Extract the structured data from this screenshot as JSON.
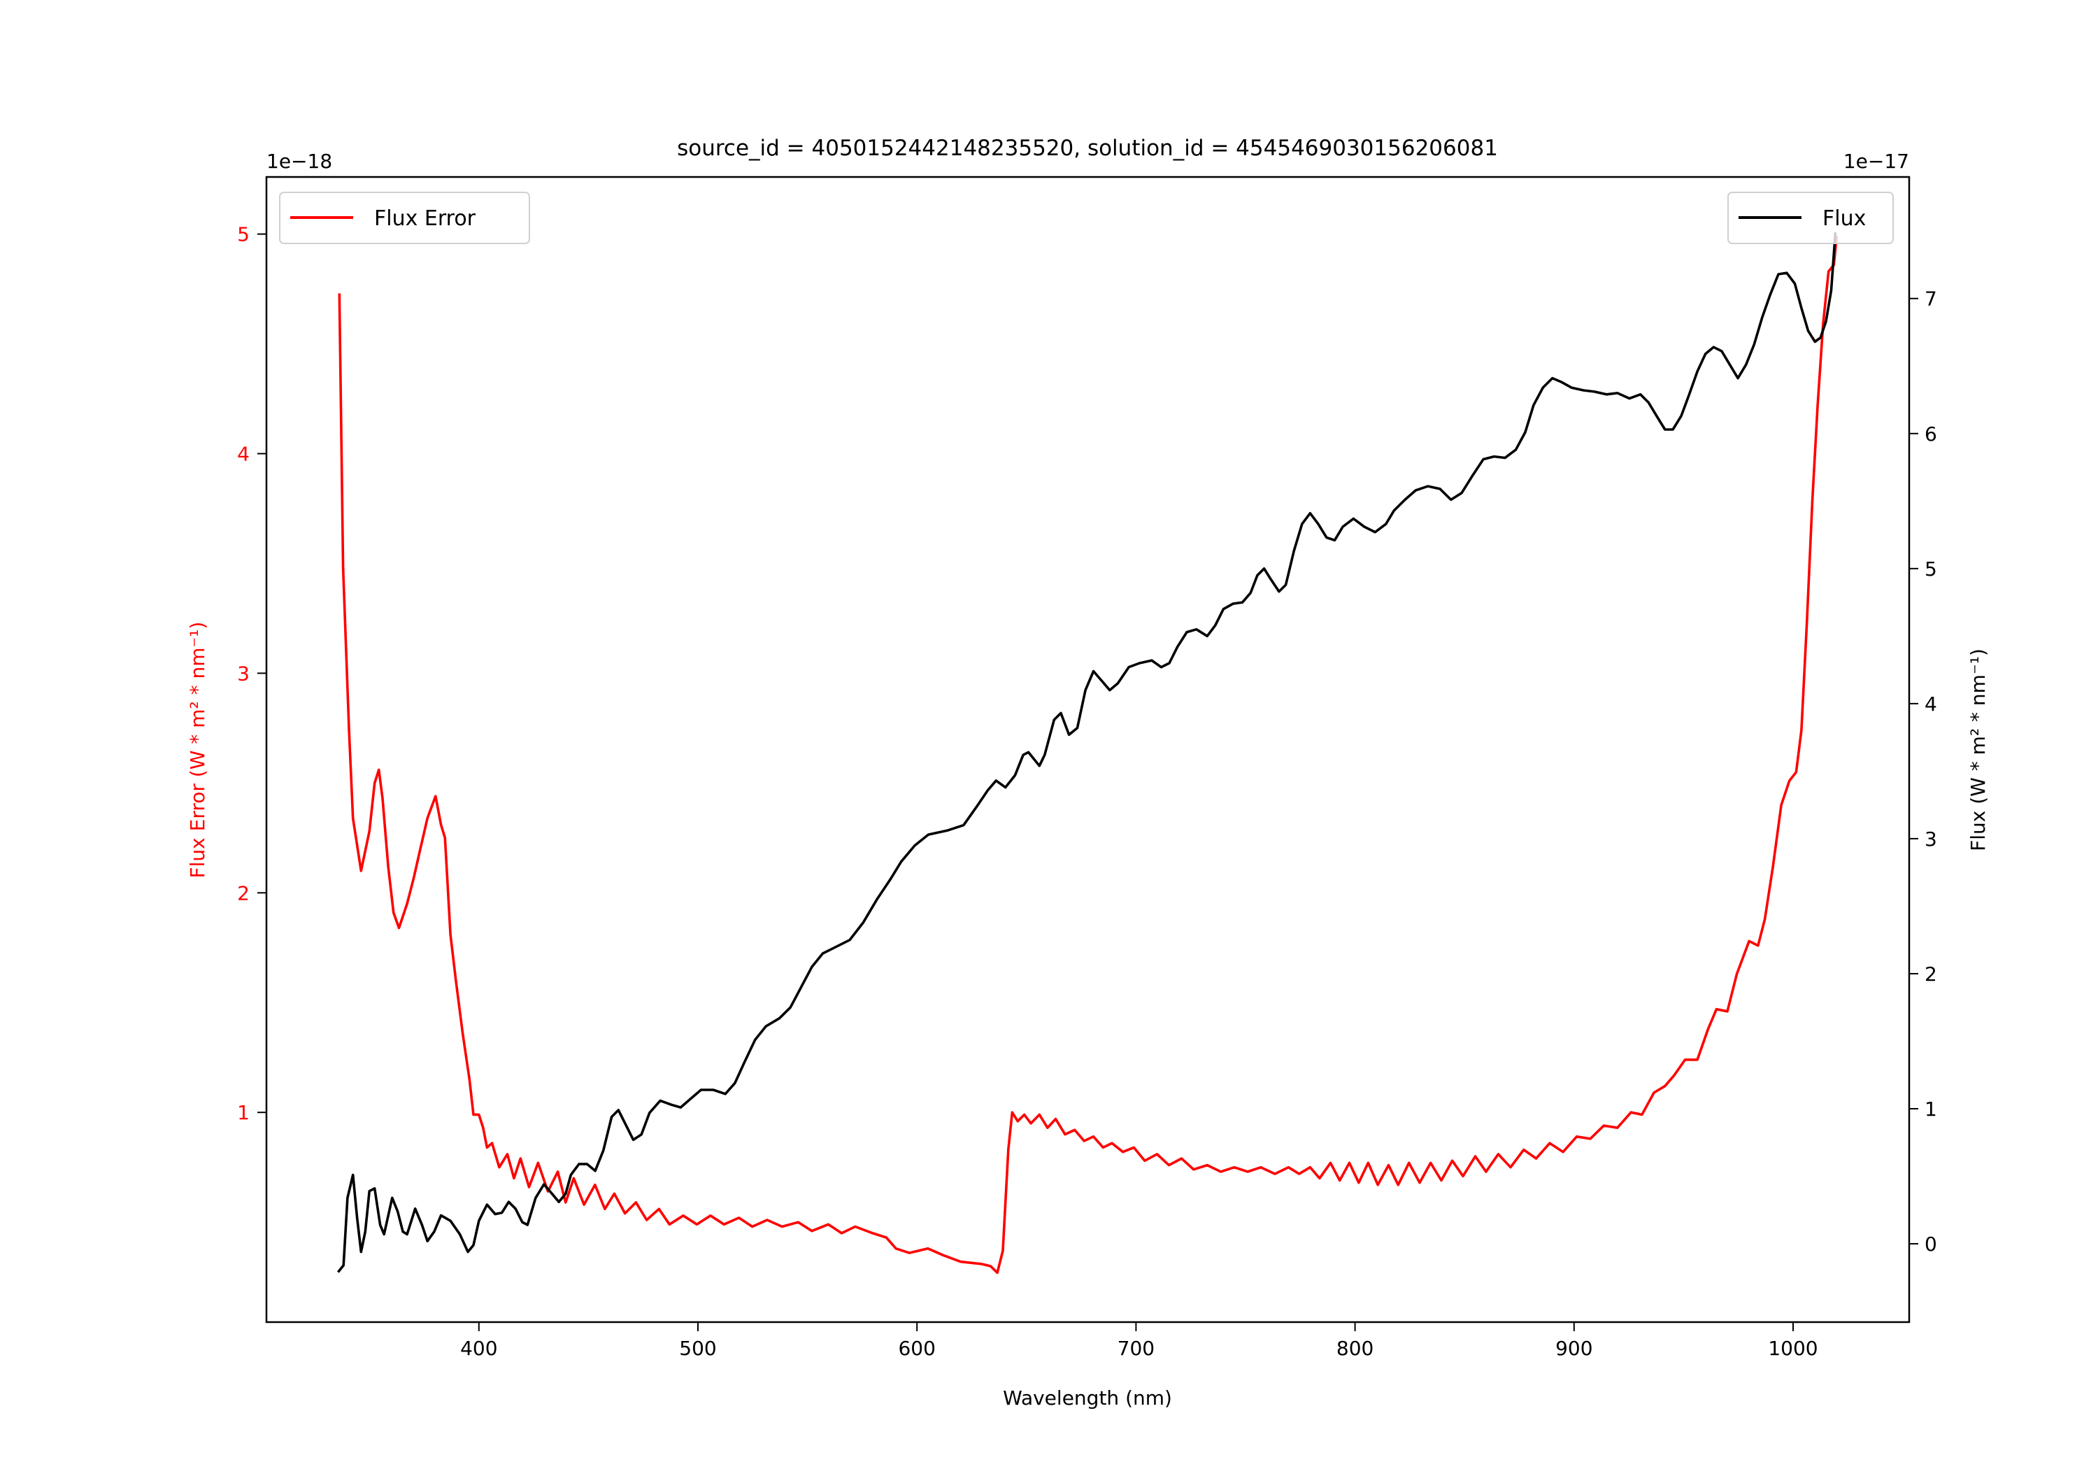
{
  "chart_data": {
    "type": "line",
    "title": "source_id = 4050152442148235520, solution_id = 4545469030156206081",
    "xlabel": "Wavelength (nm)",
    "xlim": [
      303,
      1053
    ],
    "xticks": [
      400,
      500,
      600,
      700,
      800,
      900,
      1000
    ],
    "left_axis": {
      "ylabel": "Flux Error (W * m² * nm⁻¹)",
      "offset_text": "1e−18",
      "ylim": [
        0.045,
        5.26
      ],
      "yticks": [
        1,
        2,
        3,
        4,
        5
      ],
      "color": "#ff0000"
    },
    "right_axis": {
      "ylabel": "Flux (W * m² * nm⁻¹)",
      "offset_text": "1e−17",
      "ylim": [
        -0.58,
        7.9
      ],
      "yticks": [
        0,
        1,
        2,
        3,
        4,
        5,
        6,
        7
      ],
      "color": "#000000"
    },
    "legends": [
      {
        "label": "Flux Error",
        "color": "#ff0000",
        "position": "upper-left"
      },
      {
        "label": "Flux",
        "color": "#000000",
        "position": "upper-right"
      }
    ],
    "series": [
      {
        "name": "Flux Error",
        "axis": "left",
        "color": "#ff0000",
        "x": [
          336.3,
          338,
          340.7,
          342.5,
          346.2,
          350,
          352.4,
          354.3,
          356,
          358.6,
          361,
          363.5,
          367.2,
          370.3,
          372.8,
          376.5,
          380.2,
          382.7,
          384.5,
          387,
          389.5,
          392.6,
          395.7,
          397.5,
          400,
          401.9,
          403.7,
          406,
          409.3,
          413,
          416,
          419,
          422.9,
          427,
          431.5,
          436,
          439.6,
          443.3,
          448,
          453,
          457.5,
          461.8,
          466.7,
          471.7,
          476.6,
          482.2,
          487,
          493.3,
          499.5,
          505.7,
          511.9,
          518.7,
          524.8,
          531.6,
          538.4,
          545.8,
          552,
          559.5,
          565.6,
          571.8,
          579.8,
          586,
          590.4,
          596.5,
          605,
          611.9,
          620,
          629.3,
          633.6,
          636.7,
          639.2,
          641.7,
          643.5,
          646,
          649,
          652,
          655.9,
          659.6,
          663.3,
          667.6,
          672,
          676.3,
          680.6,
          685,
          689,
          694,
          699,
          704,
          709.6,
          715,
          720.8,
          726.3,
          732.5,
          738.7,
          744.9,
          751,
          757,
          763.4,
          769.6,
          774.5,
          779.5,
          783.8,
          788.8,
          793,
          797.4,
          801.7,
          806,
          810.4,
          815.3,
          819.7,
          824.6,
          829.5,
          834.5,
          839.4,
          844.4,
          849.3,
          854.9,
          859.8,
          865.4,
          871,
          877,
          882.7,
          888.9,
          895,
          901.2,
          907.4,
          913.6,
          919.8,
          926,
          931,
          936.5,
          941.5,
          945.8,
          950.7,
          956.3,
          961.2,
          965,
          970,
          974.3,
          979.9,
          984,
          987.1,
          990.8,
          994.6,
          998.3,
          1001.4,
          1003.8,
          1006.3,
          1008.8,
          1011.2,
          1013.7,
          1016.2,
          1018.6,
          1019.9
        ],
        "y": [
          4.73,
          3.48,
          2.74,
          2.34,
          2.1,
          2.28,
          2.5,
          2.56,
          2.43,
          2.12,
          1.91,
          1.84,
          1.95,
          2.07,
          2.18,
          2.34,
          2.44,
          2.31,
          2.25,
          1.81,
          1.6,
          1.36,
          1.15,
          0.99,
          0.99,
          0.93,
          0.84,
          0.86,
          0.75,
          0.81,
          0.7,
          0.79,
          0.66,
          0.77,
          0.64,
          0.73,
          0.59,
          0.7,
          0.58,
          0.67,
          0.56,
          0.63,
          0.54,
          0.59,
          0.51,
          0.56,
          0.49,
          0.53,
          0.49,
          0.53,
          0.49,
          0.52,
          0.48,
          0.51,
          0.48,
          0.5,
          0.46,
          0.49,
          0.45,
          0.48,
          0.45,
          0.43,
          0.38,
          0.36,
          0.38,
          0.35,
          0.32,
          0.31,
          0.3,
          0.27,
          0.37,
          0.83,
          1.0,
          0.96,
          0.99,
          0.95,
          0.99,
          0.93,
          0.97,
          0.9,
          0.92,
          0.87,
          0.89,
          0.84,
          0.86,
          0.82,
          0.84,
          0.78,
          0.81,
          0.76,
          0.79,
          0.74,
          0.76,
          0.73,
          0.75,
          0.73,
          0.75,
          0.72,
          0.75,
          0.72,
          0.75,
          0.7,
          0.77,
          0.69,
          0.77,
          0.68,
          0.77,
          0.67,
          0.76,
          0.67,
          0.77,
          0.68,
          0.77,
          0.69,
          0.78,
          0.71,
          0.8,
          0.73,
          0.81,
          0.75,
          0.83,
          0.79,
          0.86,
          0.82,
          0.89,
          0.88,
          0.94,
          0.93,
          1.0,
          0.99,
          1.09,
          1.12,
          1.17,
          1.24,
          1.24,
          1.38,
          1.47,
          1.46,
          1.63,
          1.78,
          1.76,
          1.88,
          2.12,
          2.4,
          2.51,
          2.55,
          2.74,
          3.23,
          3.79,
          4.22,
          4.59,
          4.83,
          4.86,
          4.99
        ]
      },
      {
        "name": "Flux",
        "axis": "right",
        "color": "#000000",
        "x": [
          335.7,
          338.2,
          340,
          342.5,
          344.4,
          346.2,
          348.1,
          350,
          352.4,
          354.9,
          356.7,
          360.4,
          362.9,
          365.3,
          367.2,
          370.9,
          374,
          376.5,
          379.6,
          382.7,
          387,
          391.3,
          395,
          397.5,
          400,
          403.7,
          407.4,
          410.5,
          413.6,
          416.7,
          419.8,
          422.2,
          425.9,
          429.7,
          433.4,
          436.5,
          439.6,
          442,
          445.7,
          449.4,
          453.1,
          456.8,
          460.6,
          463.7,
          467.4,
          470.5,
          474.2,
          477.9,
          482.8,
          487.8,
          492.1,
          496.4,
          501.4,
          507,
          512.5,
          516.9,
          521.1,
          526.1,
          531,
          537.2,
          542.2,
          547.1,
          552,
          557,
          563.2,
          569.3,
          575.5,
          581.7,
          587.9,
          592.8,
          599,
          605.2,
          613.8,
          621.3,
          627.4,
          632.4,
          636.1,
          640.4,
          644.8,
          648.5,
          650.9,
          655.9,
          658.3,
          662.6,
          665.7,
          669.4,
          673.2,
          676.9,
          680.6,
          684.3,
          688,
          691.7,
          696.7,
          701.6,
          707.2,
          711.5,
          715.2,
          718.9,
          723.2,
          727.6,
          732.5,
          736.2,
          739.9,
          744.3,
          748.6,
          752.3,
          755.4,
          758.5,
          761.6,
          765.3,
          768.4,
          772.1,
          775.8,
          779.5,
          783.2,
          787,
          790.7,
          794.4,
          799.3,
          804.2,
          809.2,
          814.1,
          817.8,
          822.8,
          827.7,
          833.3,
          838.8,
          843.8,
          848.7,
          853.7,
          858.6,
          863.5,
          868.5,
          873.4,
          877.7,
          881.5,
          885.8,
          890.1,
          894.4,
          898.8,
          904.3,
          909.3,
          914.8,
          919.8,
          925.3,
          930.3,
          934,
          937.7,
          941.5,
          945.1,
          948.9,
          952.6,
          956.3,
          960,
          963.7,
          967.4,
          971.1,
          974.8,
          978.5,
          982.2,
          985.9,
          989.6,
          993.3,
          997.1,
          1000.8,
          1003.8,
          1006.9,
          1010,
          1012.5,
          1015,
          1017.4,
          1019.3
        ],
        "y": [
          -0.21,
          -0.16,
          0.34,
          0.51,
          0.19,
          -0.06,
          0.09,
          0.39,
          0.41,
          0.14,
          0.07,
          0.34,
          0.24,
          0.09,
          0.07,
          0.26,
          0.14,
          0.02,
          0.09,
          0.21,
          0.17,
          0.07,
          -0.06,
          -0.01,
          0.17,
          0.29,
          0.22,
          0.23,
          0.31,
          0.26,
          0.16,
          0.14,
          0.34,
          0.44,
          0.37,
          0.31,
          0.37,
          0.51,
          0.59,
          0.59,
          0.54,
          0.69,
          0.94,
          0.99,
          0.87,
          0.77,
          0.81,
          0.97,
          1.06,
          1.03,
          1.01,
          1.07,
          1.14,
          1.14,
          1.11,
          1.19,
          1.34,
          1.51,
          1.61,
          1.67,
          1.75,
          1.9,
          2.05,
          2.15,
          2.2,
          2.25,
          2.38,
          2.55,
          2.7,
          2.83,
          2.95,
          3.03,
          3.06,
          3.1,
          3.24,
          3.36,
          3.43,
          3.38,
          3.47,
          3.62,
          3.64,
          3.54,
          3.62,
          3.88,
          3.93,
          3.77,
          3.82,
          4.1,
          4.24,
          4.17,
          4.1,
          4.15,
          4.27,
          4.3,
          4.32,
          4.27,
          4.3,
          4.42,
          4.53,
          4.55,
          4.5,
          4.58,
          4.7,
          4.74,
          4.75,
          4.82,
          4.95,
          5.0,
          4.92,
          4.83,
          4.88,
          5.13,
          5.33,
          5.41,
          5.33,
          5.23,
          5.21,
          5.31,
          5.37,
          5.31,
          5.27,
          5.33,
          5.43,
          5.51,
          5.58,
          5.61,
          5.59,
          5.51,
          5.56,
          5.69,
          5.81,
          5.83,
          5.82,
          5.88,
          6.01,
          6.21,
          6.34,
          6.41,
          6.38,
          6.34,
          6.32,
          6.31,
          6.29,
          6.3,
          6.26,
          6.29,
          6.23,
          6.13,
          6.03,
          6.03,
          6.13,
          6.29,
          6.46,
          6.59,
          6.64,
          6.61,
          6.51,
          6.41,
          6.51,
          6.66,
          6.86,
          7.03,
          7.18,
          7.19,
          7.11,
          6.93,
          6.76,
          6.68,
          6.71,
          6.83,
          7.06,
          7.49
        ]
      }
    ]
  }
}
